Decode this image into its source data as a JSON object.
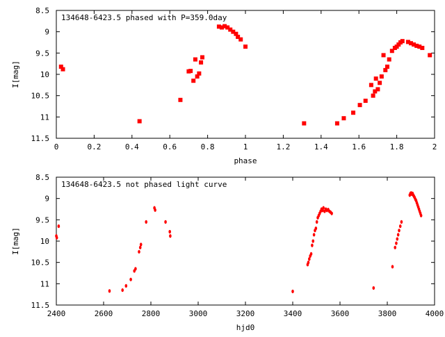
{
  "chart_data": [
    {
      "type": "scatter",
      "title": "134648-6423.5 phased with P=359.0day",
      "xlabel": "phase",
      "ylabel": "I[mag]",
      "xlim": [
        0,
        2
      ],
      "ylim": [
        11.5,
        8.5
      ],
      "y_inverted": true,
      "x_ticks": [
        "0",
        "0.2",
        "0.4",
        "0.6",
        "0.8",
        "1",
        "1.2",
        "1.4",
        "1.6",
        "1.8",
        "2"
      ],
      "y_ticks": [
        "8.5",
        "9",
        "9.5",
        "10",
        "10.5",
        "11",
        "11.5"
      ],
      "grid": false,
      "marker_color": "#ff0000",
      "series": [
        {
          "x": [
            0.025,
            0.035,
            0.44,
            0.656,
            0.7,
            0.71,
            0.725,
            0.735,
            0.745,
            0.755,
            0.765,
            0.772,
            0.86,
            0.875,
            0.89,
            0.905,
            0.92,
            0.935,
            0.95,
            0.96,
            0.975,
            1.0,
            1.31,
            1.485,
            1.52,
            1.57,
            1.605,
            1.635,
            1.665,
            1.675,
            1.685,
            1.69,
            1.7,
            1.71,
            1.72,
            1.73,
            1.74,
            1.75,
            1.76,
            1.775,
            1.79,
            1.8,
            1.81,
            1.82,
            1.83,
            1.86,
            1.875,
            1.89,
            1.905,
            1.92,
            1.935,
            1.975
          ],
          "y": [
            9.82,
            9.88,
            11.1,
            10.6,
            9.93,
            9.92,
            10.15,
            9.65,
            10.05,
            9.98,
            9.72,
            9.6,
            8.88,
            8.9,
            8.87,
            8.9,
            8.95,
            9.0,
            9.05,
            9.12,
            9.18,
            9.35,
            11.15,
            11.15,
            11.03,
            10.9,
            10.72,
            10.62,
            10.25,
            10.5,
            10.4,
            10.1,
            10.35,
            10.2,
            10.05,
            9.55,
            9.9,
            9.82,
            9.65,
            9.45,
            9.38,
            9.35,
            9.3,
            9.25,
            9.22,
            9.24,
            9.27,
            9.3,
            9.33,
            9.35,
            9.38,
            9.55
          ]
        }
      ]
    },
    {
      "type": "scatter",
      "title": "134648-6423.5 not phased light curve",
      "xlabel": "hjd0",
      "ylabel": "I[mag]",
      "xlim": [
        2400,
        4000
      ],
      "ylim": [
        11.5,
        8.5
      ],
      "y_inverted": true,
      "x_ticks": [
        "2400",
        "2600",
        "2800",
        "3000",
        "3200",
        "3400",
        "3600",
        "3800",
        "4000"
      ],
      "y_ticks": [
        "8.5",
        "9",
        "9.5",
        "10",
        "10.5",
        "11",
        "11.5"
      ],
      "grid": false,
      "marker_color": "#ff0000",
      "series": [
        {
          "x": [
            2400,
            2402,
            2410,
            2625,
            2680,
            2695,
            2715,
            2730,
            2735,
            2750,
            2755,
            2758,
            2780,
            2815,
            2818,
            2862,
            2880,
            2882,
            3400,
            3463,
            3466,
            3470,
            3474,
            3478,
            3482,
            3486,
            3490,
            3494,
            3498,
            3502,
            3506,
            3510,
            3514,
            3518,
            3522,
            3526,
            3530,
            3535,
            3540,
            3545,
            3550,
            3555,
            3560,
            3565,
            3742,
            3822,
            3833,
            3838,
            3842,
            3846,
            3850,
            3855,
            3860,
            3895,
            3898,
            3901,
            3904,
            3907,
            3910,
            3913,
            3916,
            3919,
            3922,
            3925,
            3928,
            3931,
            3934,
            3937,
            3940,
            3943
          ],
          "y": [
            9.88,
            9.92,
            9.65,
            11.17,
            11.15,
            11.05,
            10.9,
            10.7,
            10.65,
            10.25,
            10.15,
            10.08,
            9.55,
            9.22,
            9.27,
            9.55,
            9.78,
            9.88,
            11.18,
            10.55,
            10.5,
            10.42,
            10.35,
            10.3,
            10.1,
            10.0,
            9.85,
            9.75,
            9.7,
            9.55,
            9.45,
            9.4,
            9.35,
            9.3,
            9.25,
            9.28,
            9.22,
            9.3,
            9.25,
            9.28,
            9.26,
            9.3,
            9.32,
            9.35,
            11.1,
            10.6,
            10.15,
            10.05,
            9.95,
            9.85,
            9.75,
            9.65,
            9.55,
            8.92,
            8.88,
            8.87,
            8.9,
            8.88,
            8.92,
            8.95,
            8.98,
            9.02,
            9.05,
            9.1,
            9.15,
            9.2,
            9.25,
            9.3,
            9.35,
            9.4
          ]
        }
      ]
    }
  ]
}
